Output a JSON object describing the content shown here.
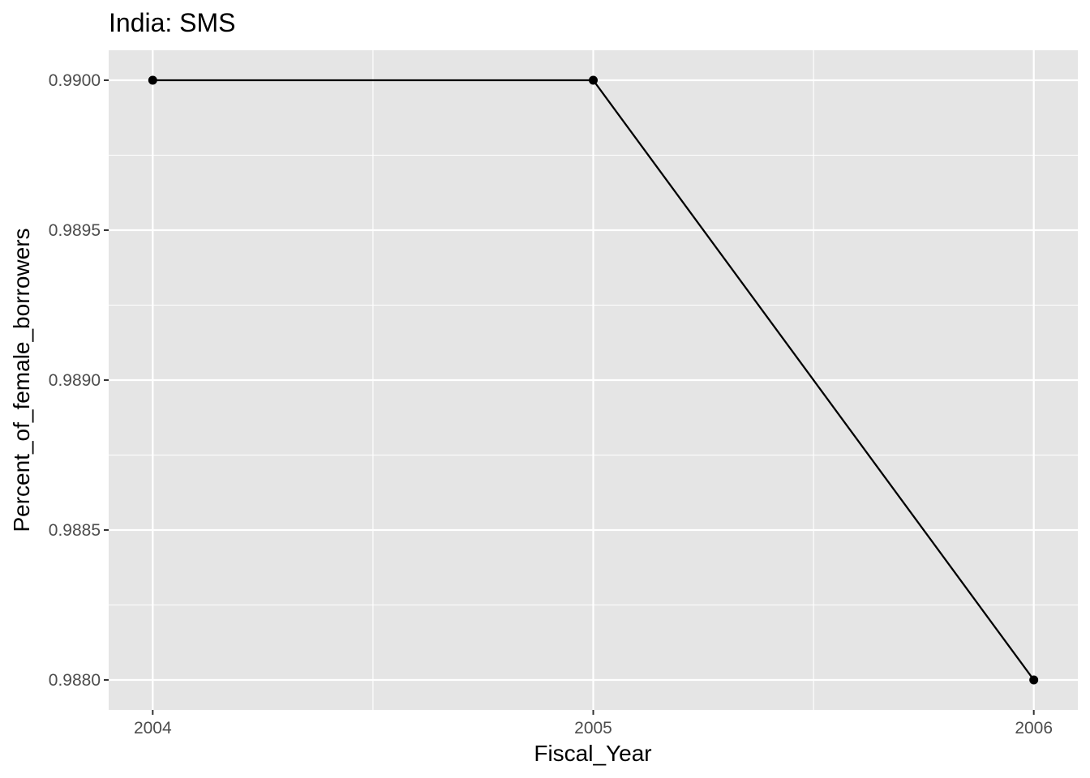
{
  "chart_data": {
    "type": "line",
    "title": "India:  SMS",
    "xlabel": "Fiscal_Year",
    "ylabel": "Percent_of_female_borrowers",
    "x": [
      2004,
      2005,
      2006
    ],
    "series": [
      {
        "values": [
          0.99,
          0.99,
          0.988
        ]
      }
    ],
    "x_ticks": [
      "2004",
      "2005",
      "2006"
    ],
    "y_ticks": [
      "0.9880",
      "0.9885",
      "0.9890",
      "0.9895",
      "0.9900"
    ],
    "x_tick_values": [
      2004,
      2005,
      2006
    ],
    "y_tick_values": [
      0.988,
      0.9885,
      0.989,
      0.9895,
      0.99
    ],
    "xlim": [
      2003.9,
      2006.1
    ],
    "ylim": [
      0.9879,
      0.9901
    ],
    "grid": true,
    "panel_color": "#e5e5e5",
    "grid_color": "#ffffff",
    "line_color": "#000000"
  }
}
